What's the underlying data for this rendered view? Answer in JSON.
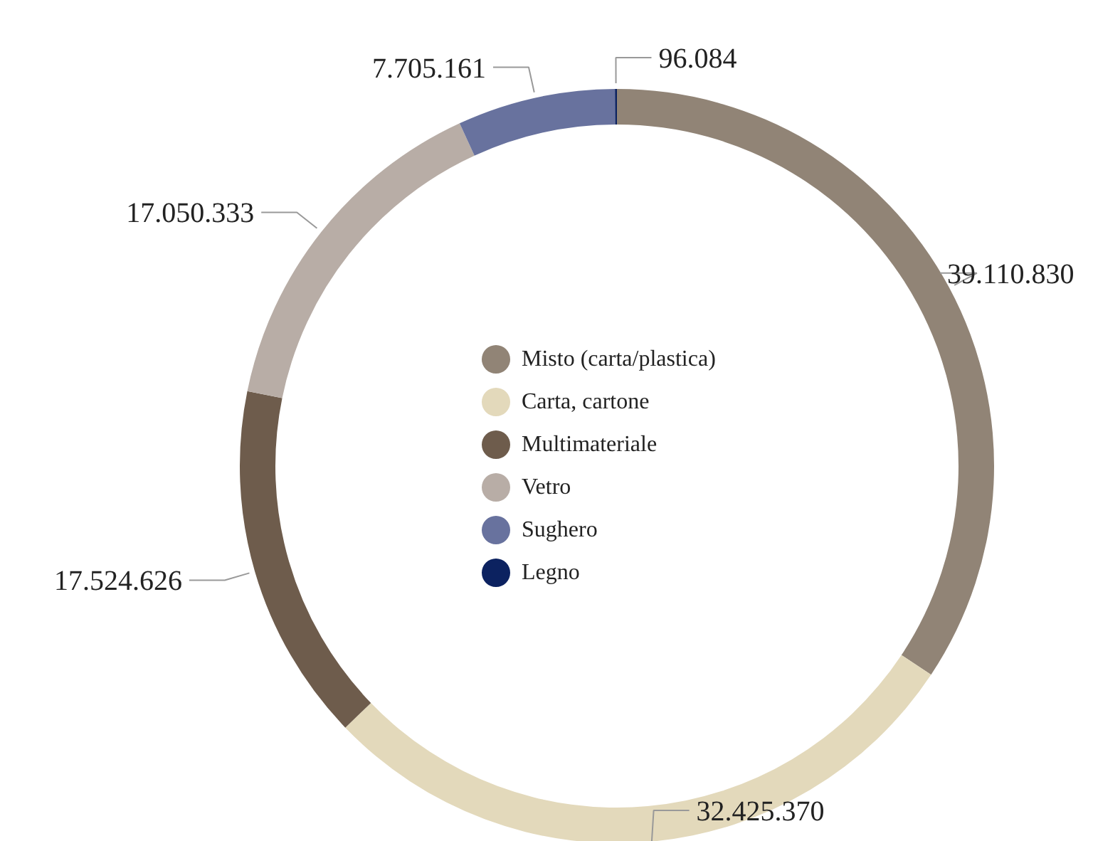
{
  "chart_data": {
    "type": "donut",
    "categories": [
      "Misto (carta/plastica)",
      "Carta, cartone",
      "Multimateriale",
      "Vetro",
      "Sughero",
      "Legno"
    ],
    "values": [
      39110830,
      32425370,
      17524626,
      17050333,
      7705161,
      96084
    ],
    "colors": [
      "#918476",
      "#e3d9bb",
      "#6e5c4c",
      "#b8ada6",
      "#68729e",
      "#0c2260"
    ],
    "value_labels": [
      "39.110.830",
      "32.425.370",
      "17.524.626",
      "17.050.333",
      "7.705.161",
      "96.084"
    ],
    "legend": "center"
  }
}
